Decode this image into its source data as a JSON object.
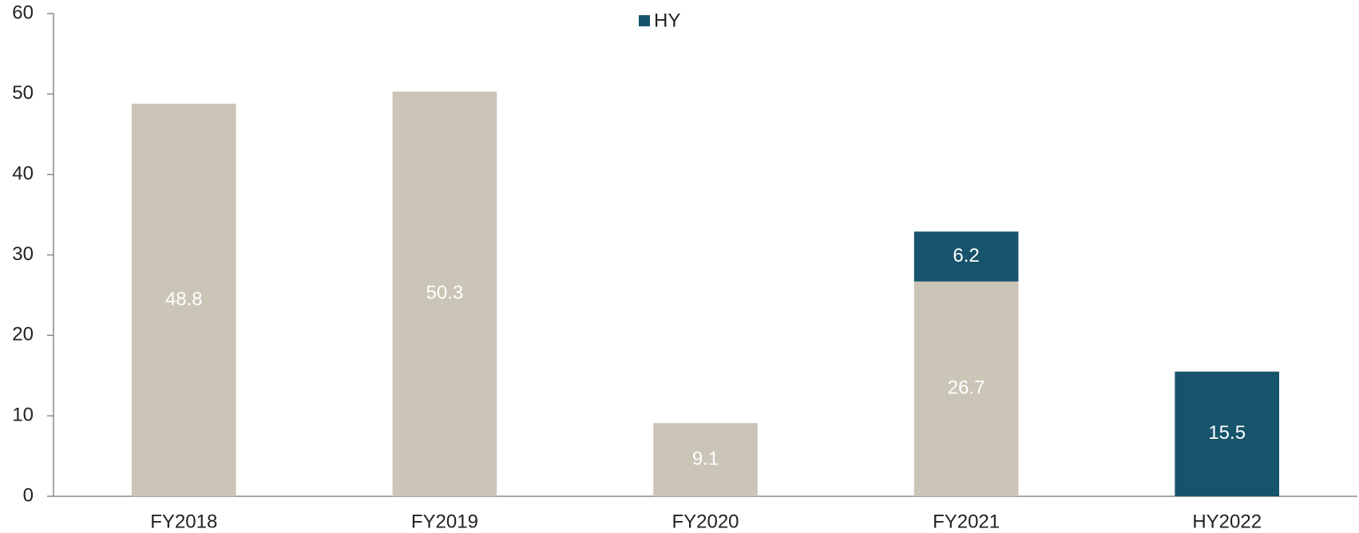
{
  "chart_data": {
    "type": "bar",
    "stacked": true,
    "categories": [
      "FY2018",
      "FY2019",
      "FY2020",
      "FY2021",
      "HY2022"
    ],
    "series": [
      {
        "color": "#cbc5b7",
        "values": [
          48.8,
          50.3,
          9.1,
          26.7,
          null
        ]
      },
      {
        "name": "HY",
        "color": "#17536b",
        "values": [
          null,
          null,
          null,
          6.2,
          15.5
        ]
      }
    ],
    "ylim": [
      0,
      60
    ],
    "yticks": [
      0,
      10,
      20,
      30,
      40,
      50,
      60
    ],
    "grid": false,
    "legend": "top"
  }
}
